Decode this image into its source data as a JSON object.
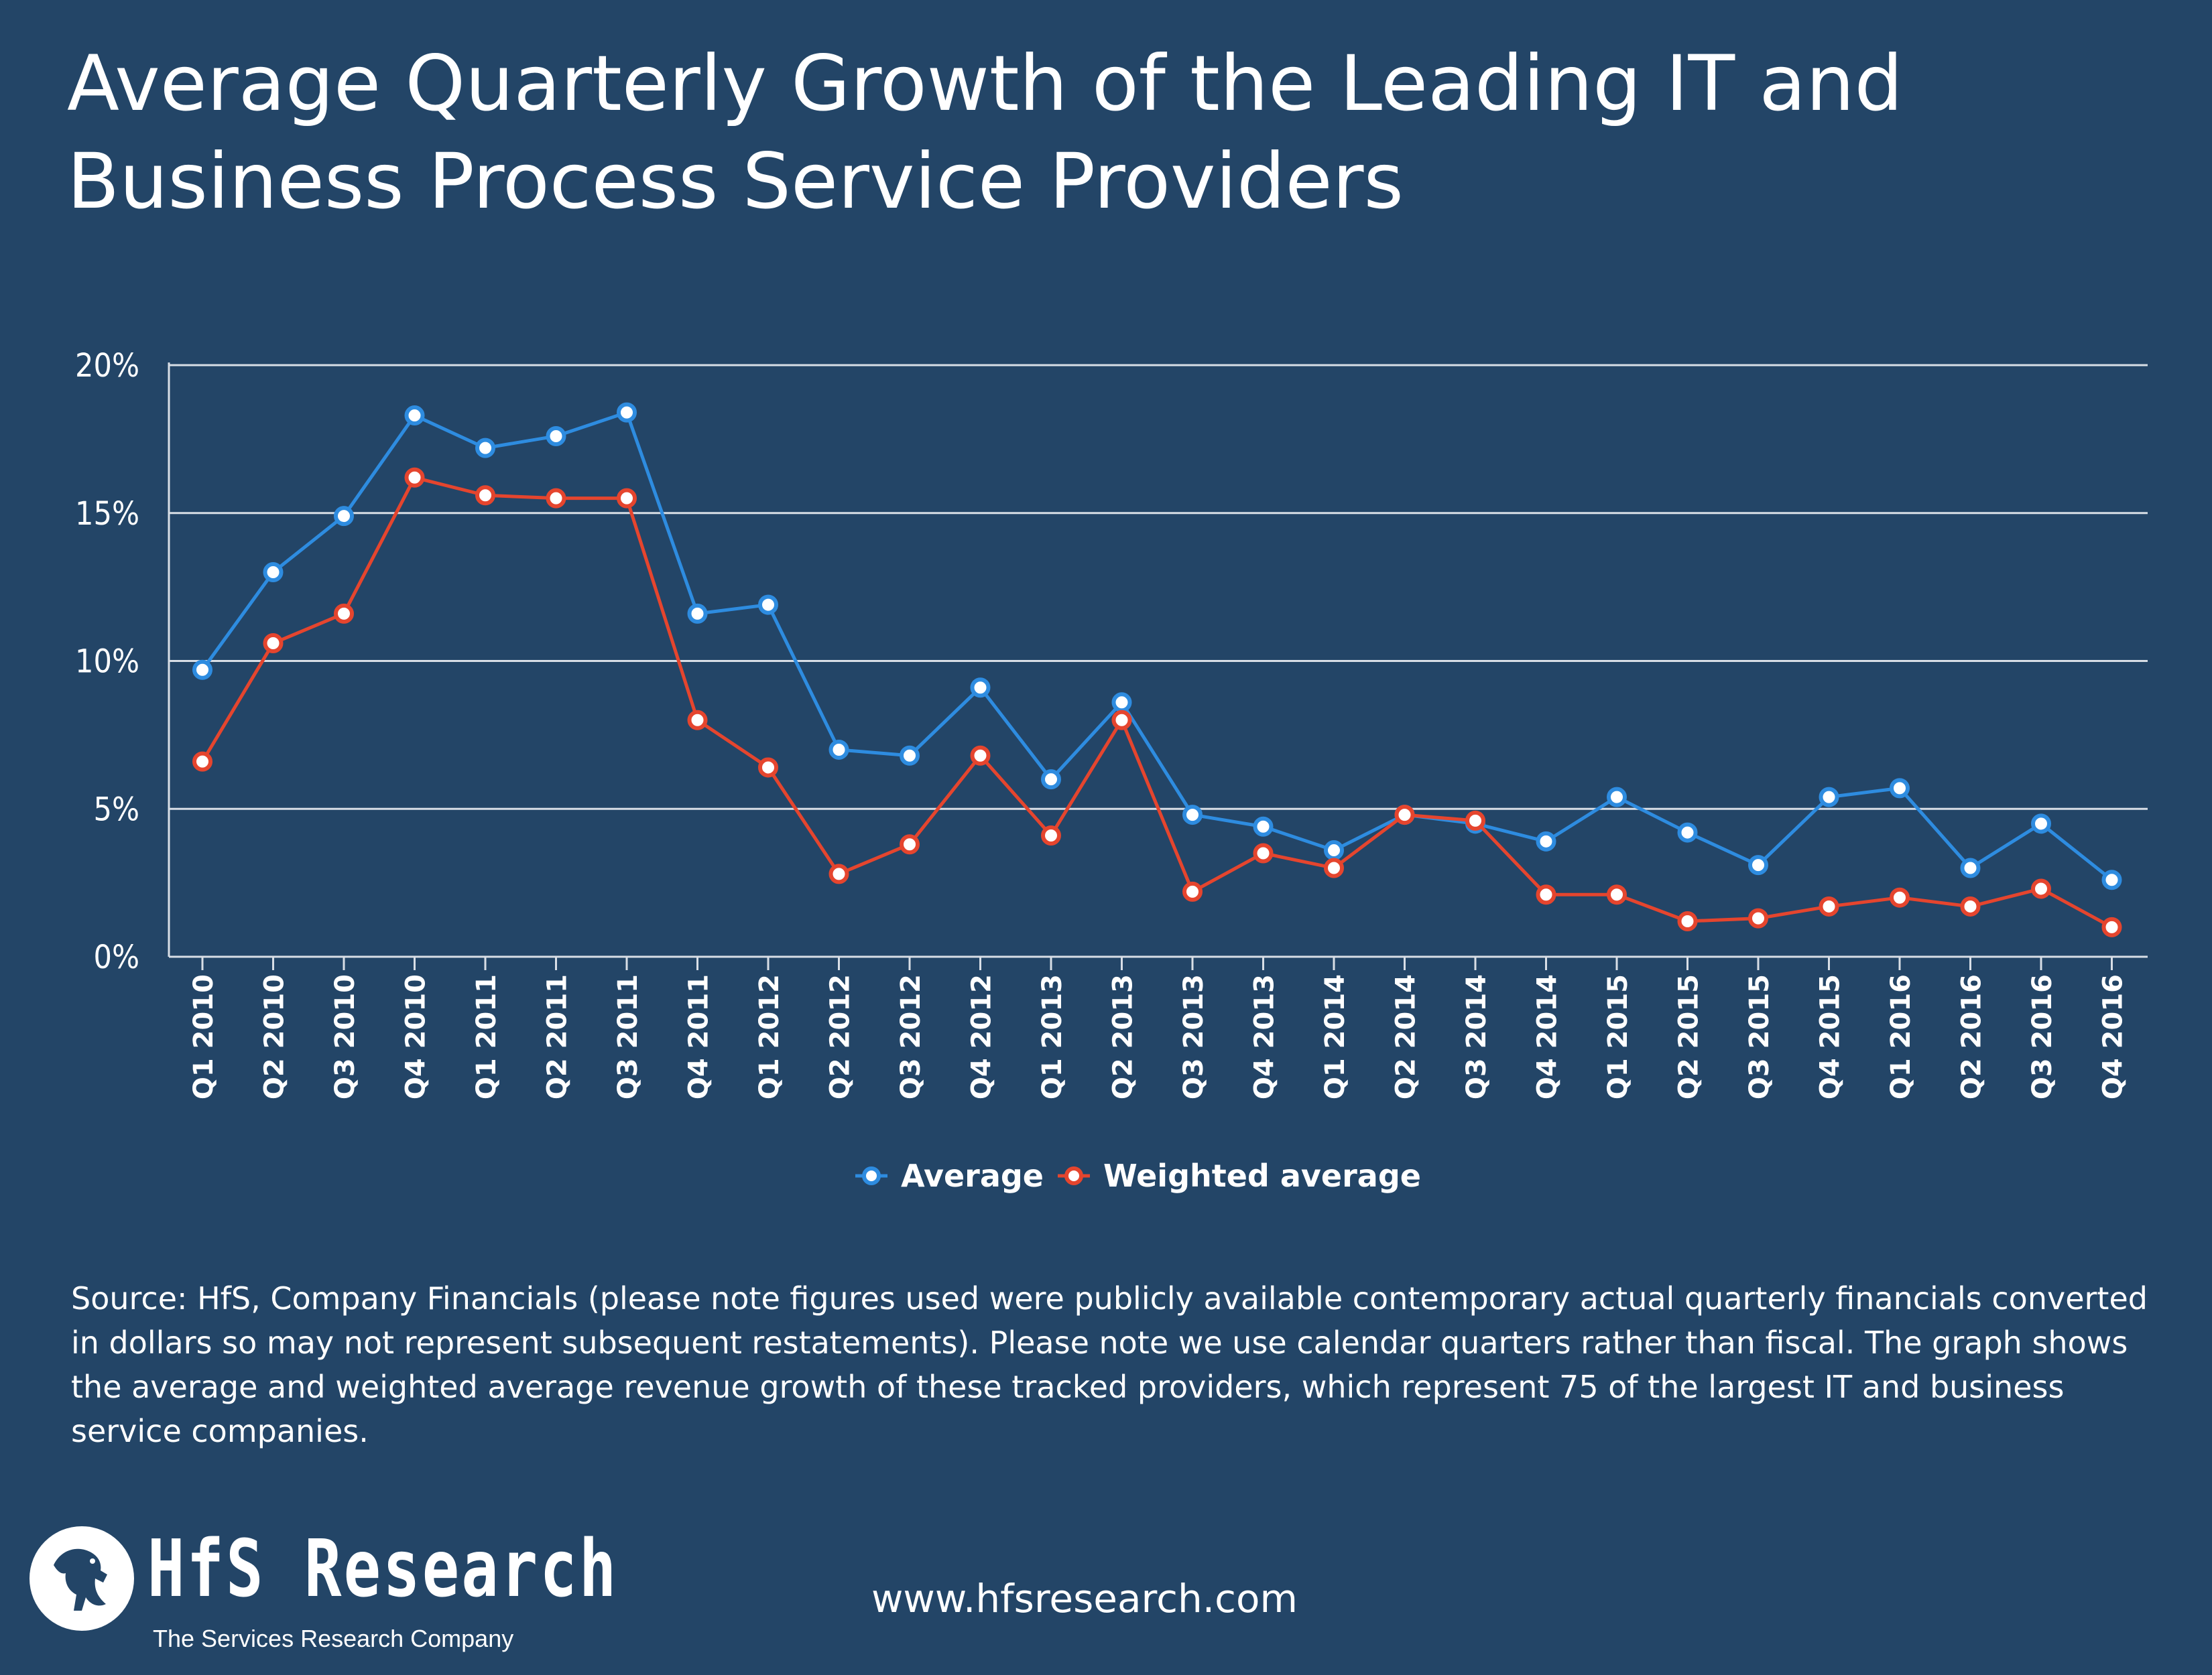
{
  "title": "Average Quarterly Growth of the Leading IT and Business Process Service Providers",
  "source_note": "Source: HfS, Company Financials (please note figures used were publicly available contemporary actual quarterly financials converted in dollars so may not represent subsequent restatements). Please note we use calendar quarters rather than fiscal. The graph shows the average and weighted average revenue growth of these tracked providers, which represent 75 of the largest IT and business service companies.",
  "website": "www.hfsresearch.com",
  "logo": {
    "name": "HfS Research",
    "tagline": "The Services Research Company"
  },
  "colors": {
    "background": "#234567",
    "average": "#2e8ce0",
    "weighted_average": "#e5452e",
    "gridline": "#d8dee6",
    "text": "#ffffff"
  },
  "chart_data": {
    "type": "line",
    "categories": [
      "Q1 2010",
      "Q2 2010",
      "Q3 2010",
      "Q4 2010",
      "Q1 2011",
      "Q2 2011",
      "Q3 2011",
      "Q4 2011",
      "Q1 2012",
      "Q2 2012",
      "Q3 2012",
      "Q4 2012",
      "Q1 2013",
      "Q2 2013",
      "Q3 2013",
      "Q4 2013",
      "Q1 2014",
      "Q2 2014",
      "Q3 2014",
      "Q4 2014",
      "Q1 2015",
      "Q2 2015",
      "Q3 2015",
      "Q4 2015",
      "Q1 2016",
      "Q2 2016",
      "Q3 2016",
      "Q4 2016"
    ],
    "series": [
      {
        "name": "Average",
        "color": "#2e8ce0",
        "values": [
          9.7,
          13.0,
          14.9,
          18.3,
          17.2,
          17.6,
          18.4,
          11.6,
          11.9,
          7.0,
          6.8,
          9.1,
          6.0,
          8.6,
          4.8,
          4.4,
          3.6,
          4.8,
          4.5,
          3.9,
          5.4,
          4.2,
          3.1,
          5.4,
          5.7,
          3.0,
          4.5,
          2.6
        ]
      },
      {
        "name": "Weighted average",
        "color": "#e5452e",
        "values": [
          6.6,
          10.6,
          11.6,
          16.2,
          15.6,
          15.5,
          15.5,
          8.0,
          6.4,
          2.8,
          3.8,
          6.8,
          4.1,
          8.0,
          2.2,
          3.5,
          3.0,
          4.8,
          4.6,
          2.1,
          2.1,
          1.2,
          1.3,
          1.7,
          2.0,
          1.7,
          2.3,
          1.0
        ]
      }
    ],
    "ylim": [
      0,
      20
    ],
    "yticks": [
      "0%",
      "5%",
      "10%",
      "15%",
      "20%"
    ],
    "ytick_values": [
      0,
      5,
      10,
      15,
      20
    ],
    "grid": true,
    "legend_position": "bottom-center",
    "xlabel": "",
    "ylabel": ""
  }
}
